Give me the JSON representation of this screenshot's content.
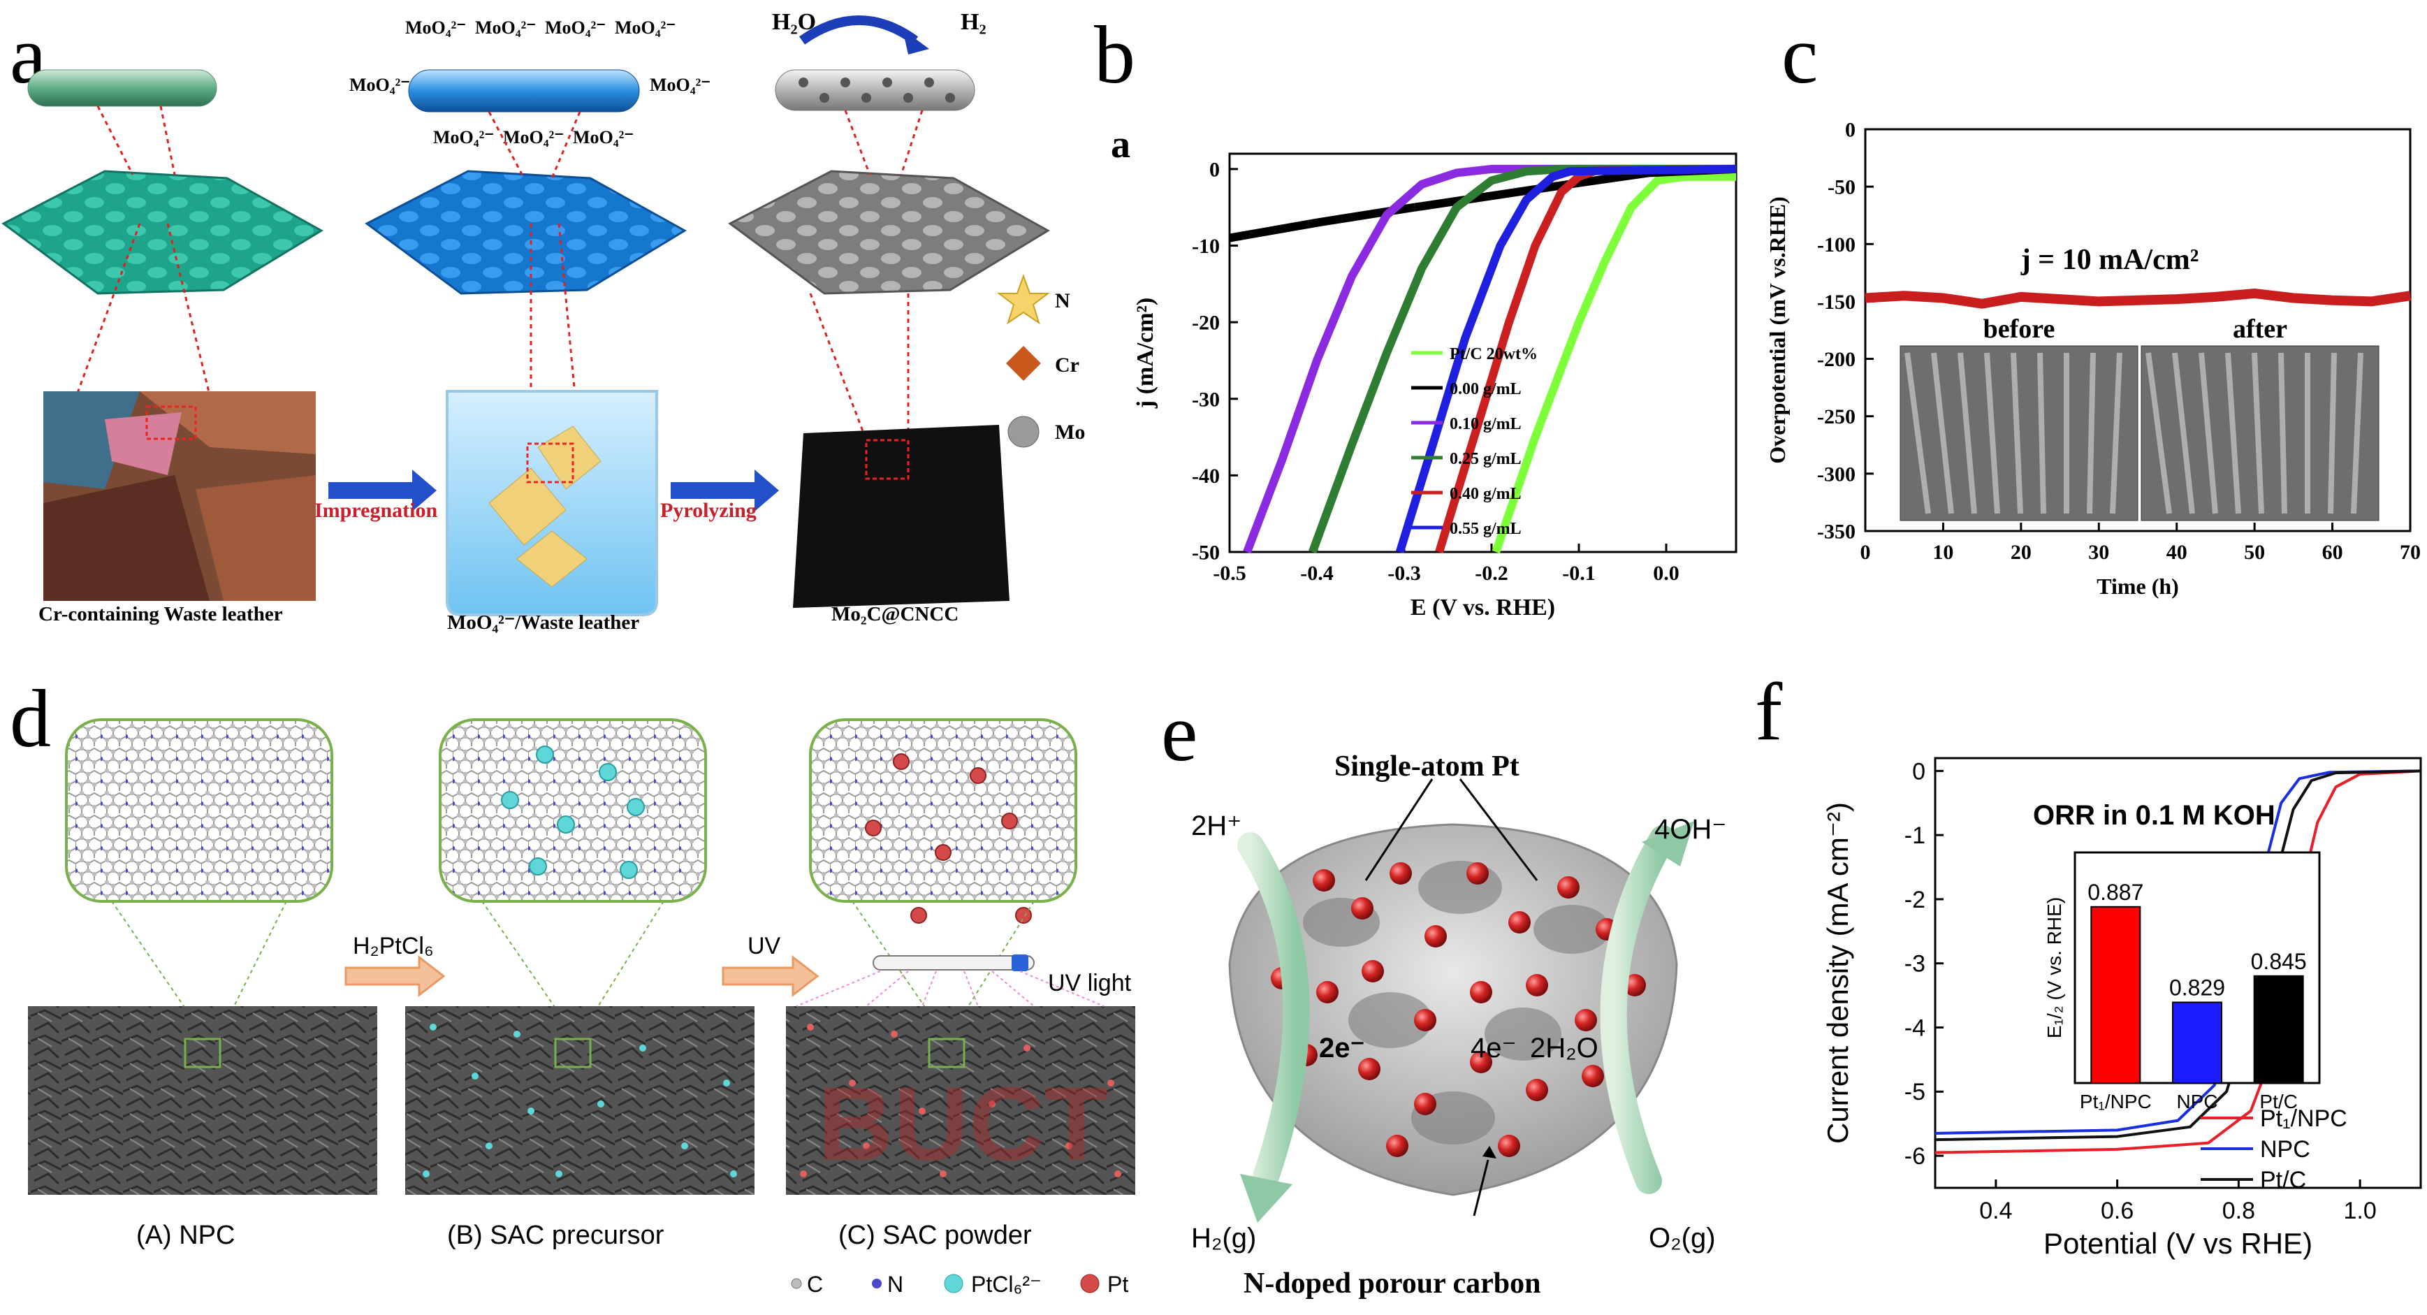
{
  "panels": {
    "a": {
      "label": "a",
      "steps": [
        "Cr-containing Waste leather",
        "MoO₄²⁻/Waste leather",
        "Mo₂C@CNCC"
      ],
      "arrows": [
        "Impregnation",
        "Pyrolyzing"
      ],
      "ion_label": "MoO₄²⁻",
      "h2o": "H₂O",
      "h2": "H₂",
      "legend": [
        {
          "symbol": "star-icon",
          "label": "N",
          "color": "#f6d36b"
        },
        {
          "symbol": "diamond-icon",
          "label": "Cr",
          "color": "#c8581c"
        },
        {
          "symbol": "sphere-icon",
          "label": "Mo",
          "color": "#9a9a9a"
        }
      ]
    },
    "b": {
      "label": "b",
      "inner_label": "a"
    },
    "c": {
      "label": "c"
    },
    "d": {
      "label": "d",
      "captions": [
        "(A) NPC",
        "(B) SAC precursor",
        "(C) SAC powder"
      ],
      "arrow1": "H₂PtCl₆",
      "arrow2": "UV",
      "uv_light": "UV light",
      "watermark": "BUCT",
      "legend": [
        {
          "label": "C",
          "color": "#bcbcbc"
        },
        {
          "label": "N",
          "color": "#4a4ac8"
        },
        {
          "label": "PtCl₆²⁻",
          "color": "#5fd6d8"
        },
        {
          "label": "Pt",
          "color": "#d44a4a"
        }
      ]
    },
    "e": {
      "label": "e",
      "title": "Single-atom Pt",
      "left_top": "2H⁺",
      "right_top": "4OH⁻",
      "left_bottom": "H₂(g)",
      "right_bottom": "O₂(g)",
      "center_left": "2e⁻",
      "center_mid": "4e⁻",
      "center_right": "2H₂O",
      "bottom": "N-doped porour carbon"
    },
    "f": {
      "label": "f",
      "title": "ORR in 0.1 M KOH",
      "inset_ylabel": "E₁/₂ (V vs. RHE)"
    }
  },
  "chart_data": [
    {
      "id": "b",
      "type": "line",
      "title": "",
      "xlabel": "E (V vs. RHE)",
      "ylabel": "j (mA/cm²)",
      "xlim": [
        -0.5,
        0.08
      ],
      "ylim": [
        -50,
        2
      ],
      "xticks": [
        "-0.5",
        "-0.4",
        "-0.3",
        "-0.2",
        "-0.1",
        "0.0"
      ],
      "yticks": [
        "0",
        "-10",
        "-20",
        "-30",
        "-40",
        "-50"
      ],
      "legend_position": "right",
      "series": [
        {
          "name": "Pt/C 20wt%",
          "color": "#7dff3a",
          "x": [
            -0.195,
            -0.15,
            -0.1,
            -0.07,
            -0.04,
            -0.01,
            0.02,
            0.05,
            0.08
          ],
          "y": [
            -50,
            -35,
            -20,
            -12,
            -5,
            -1.5,
            -1,
            -1,
            -1
          ]
        },
        {
          "name": "0.00 g/mL",
          "color": "#000000",
          "x": [
            -0.5,
            -0.4,
            -0.3,
            -0.2,
            -0.1,
            -0.02,
            0.08
          ],
          "y": [
            -9,
            -7,
            -5.2,
            -3.5,
            -1.8,
            -0.5,
            0
          ]
        },
        {
          "name": "0.10 g/mL",
          "color": "#8a2be2",
          "x": [
            -0.48,
            -0.44,
            -0.4,
            -0.36,
            -0.32,
            -0.28,
            -0.24,
            -0.2,
            0.08
          ],
          "y": [
            -50,
            -38,
            -25,
            -14,
            -6,
            -2,
            -0.5,
            0,
            0
          ]
        },
        {
          "name": "0.25 g/mL",
          "color": "#2e7d32",
          "x": [
            -0.405,
            -0.36,
            -0.32,
            -0.28,
            -0.24,
            -0.2,
            -0.16,
            -0.12,
            0.08
          ],
          "y": [
            -50,
            -36,
            -24,
            -13,
            -5,
            -1.5,
            -0.3,
            0,
            0
          ]
        },
        {
          "name": "0.40 g/mL",
          "color": "#cc1f1f",
          "x": [
            -0.26,
            -0.22,
            -0.18,
            -0.15,
            -0.12,
            -0.1,
            -0.08,
            0.08
          ],
          "y": [
            -50,
            -35,
            -20,
            -10,
            -3,
            -1,
            -0.2,
            0
          ]
        },
        {
          "name": "0.55 g/mL",
          "color": "#1f1fe0",
          "x": [
            -0.305,
            -0.27,
            -0.23,
            -0.19,
            -0.16,
            -0.13,
            -0.11,
            0.08
          ],
          "y": [
            -50,
            -37,
            -22,
            -10,
            -4,
            -1,
            -0.3,
            0
          ]
        }
      ]
    },
    {
      "id": "c",
      "type": "line",
      "title": "",
      "xlabel": "Time (h)",
      "ylabel": "Overpotential (mV vs.RHE)",
      "xlim": [
        0,
        70
      ],
      "ylim": [
        -350,
        0
      ],
      "xticks": [
        "0",
        "10",
        "20",
        "30",
        "40",
        "50",
        "60",
        "70"
      ],
      "yticks": [
        "0",
        "-50",
        "-100",
        "-150",
        "-200",
        "-250",
        "-300",
        "-350"
      ],
      "annotation": "j = 10 mA/cm²",
      "inset_labels": [
        "before",
        "after"
      ],
      "series": [
        {
          "name": "",
          "color": "#c81e1e",
          "x": [
            0,
            5,
            10,
            15,
            20,
            25,
            30,
            35,
            40,
            45,
            50,
            55,
            60,
            65,
            70
          ],
          "y": [
            -147,
            -145,
            -147,
            -152,
            -146,
            -148,
            -150,
            -149,
            -148,
            -146,
            -143,
            -147,
            -149,
            -150,
            -145
          ]
        }
      ]
    },
    {
      "id": "f",
      "type": "line",
      "title": "ORR in 0.1 M KOH",
      "xlabel": "Potential (V vs RHE)",
      "ylabel": "Current density (mA cm⁻²)",
      "xlim": [
        0.3,
        1.1
      ],
      "ylim": [
        -6.5,
        0.2
      ],
      "xticks": [
        "0.4",
        "0.6",
        "0.8",
        "1.0"
      ],
      "yticks": [
        "0",
        "-1",
        "-2",
        "-3",
        "-4",
        "-5",
        "-6"
      ],
      "legend_position": "bottom-right",
      "series": [
        {
          "name": "Pt₁/NPC",
          "color": "#e8202a",
          "x": [
            0.3,
            0.6,
            0.75,
            0.82,
            0.86,
            0.88,
            0.9,
            0.93,
            0.96,
            1.0,
            1.1
          ],
          "y": [
            -5.95,
            -5.9,
            -5.8,
            -5.3,
            -4.3,
            -3.2,
            -2.0,
            -0.8,
            -0.25,
            -0.05,
            0
          ]
        },
        {
          "name": "NPC",
          "color": "#1a2ee0",
          "x": [
            0.3,
            0.6,
            0.7,
            0.76,
            0.8,
            0.82,
            0.84,
            0.87,
            0.9,
            0.95,
            1.1
          ],
          "y": [
            -5.65,
            -5.6,
            -5.45,
            -4.9,
            -3.6,
            -2.7,
            -1.6,
            -0.5,
            -0.12,
            -0.02,
            0
          ]
        },
        {
          "name": "Pt/C",
          "color": "#111111",
          "x": [
            0.3,
            0.6,
            0.72,
            0.78,
            0.82,
            0.84,
            0.86,
            0.89,
            0.92,
            0.96,
            1.1
          ],
          "y": [
            -5.75,
            -5.7,
            -5.55,
            -5.0,
            -3.8,
            -2.8,
            -1.7,
            -0.6,
            -0.15,
            -0.03,
            0
          ]
        }
      ]
    },
    {
      "id": "f-inset",
      "type": "bar",
      "ylabel": "E₁/₂ (V vs. RHE)",
      "categories": [
        "Pt₁/NPC",
        "NPC",
        "Pt/C"
      ],
      "values": [
        0.887,
        0.829,
        0.845
      ],
      "labels": [
        "0.887",
        "0.829",
        "0.845"
      ],
      "colors": [
        "#ff0000",
        "#1c1cff",
        "#000000"
      ],
      "ylim": [
        0.78,
        0.92
      ]
    }
  ]
}
